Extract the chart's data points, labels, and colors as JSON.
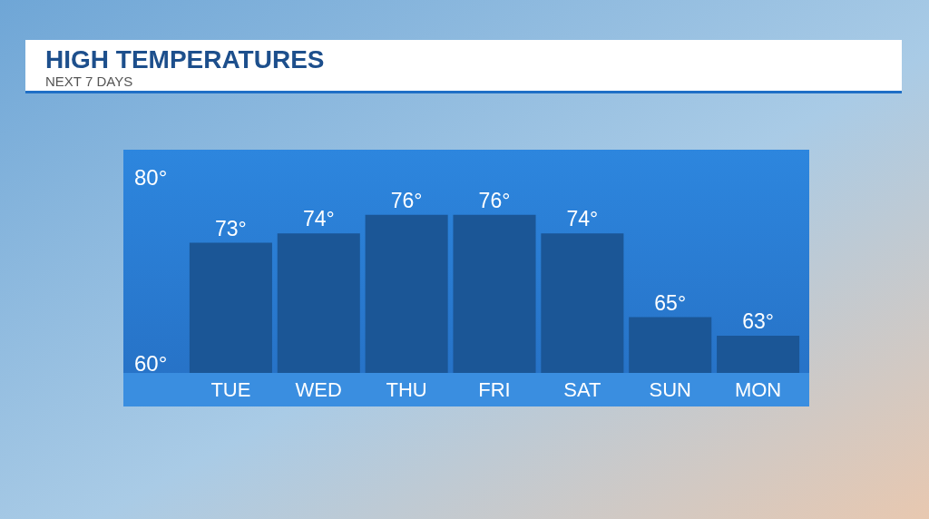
{
  "chart_data": {
    "type": "bar",
    "title": "HIGH TEMPERATURES",
    "subtitle": "NEXT 7 DAYS",
    "categories": [
      "TUE",
      "WED",
      "THU",
      "FRI",
      "SAT",
      "SUN",
      "MON"
    ],
    "values": [
      73,
      74,
      76,
      76,
      74,
      65,
      63
    ],
    "value_labels": [
      "73°",
      "74°",
      "76°",
      "76°",
      "74°",
      "65°",
      "63°"
    ],
    "color": "#1b5696",
    "ylim": [
      59,
      83
    ],
    "yticks": [
      {
        "value": 60,
        "label": "60°"
      },
      {
        "value": 80,
        "label": "80°"
      }
    ]
  }
}
